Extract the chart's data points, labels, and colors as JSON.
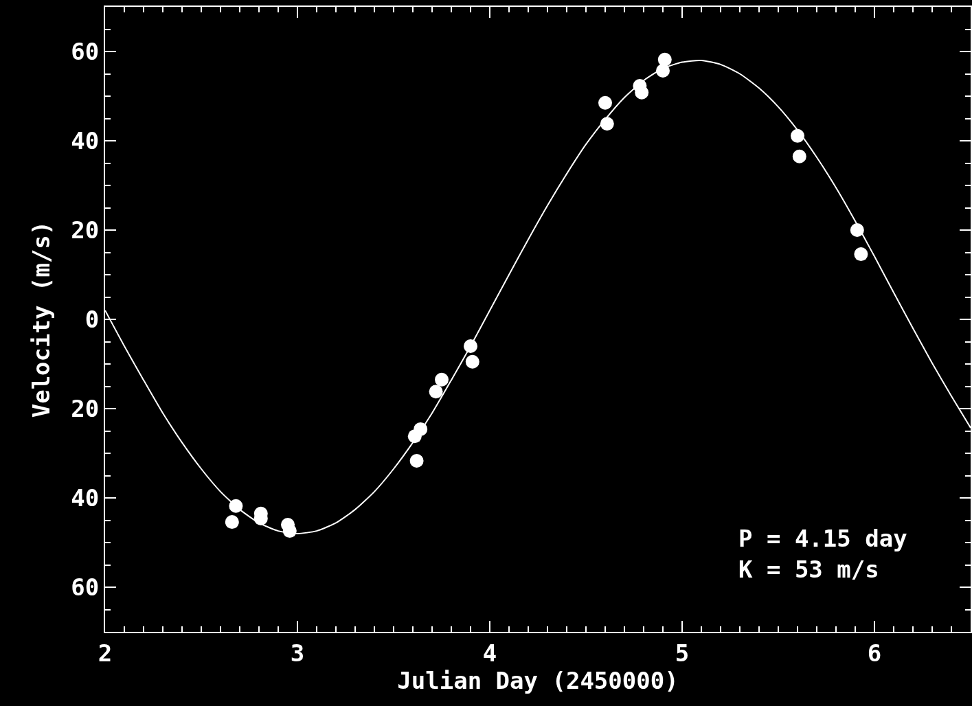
{
  "chart_data": {
    "type": "scatter",
    "xlabel": "Julian Day (2450000)",
    "ylabel": "Velocity (m/s)",
    "xlim": [
      2,
      6.5
    ],
    "xticks": [
      2,
      3,
      4,
      5,
      6
    ],
    "ylim": [
      -70,
      70
    ],
    "yticks": [
      {
        "value": -60,
        "label": "60"
      },
      {
        "value": -40,
        "label": "40"
      },
      {
        "value": -20,
        "label": "20"
      },
      0,
      20,
      40,
      60
    ],
    "grid": false,
    "marker": "circle",
    "annotations": [
      "P = 4.15 day",
      "K = 53 m/s"
    ],
    "series": [
      {
        "color": "#ffffff",
        "x": [
          2.66,
          2.68,
          2.81,
          2.81,
          2.95,
          2.96,
          3.61,
          3.64,
          3.62,
          3.72,
          3.75,
          3.9,
          3.91,
          4.6,
          4.61,
          4.78,
          4.79,
          4.9,
          4.91,
          5.6,
          5.61,
          5.91,
          5.93
        ],
        "values": [
          -45.4,
          -41.8,
          -44.6,
          -43.5,
          -46,
          -47.4,
          -26.2,
          -24.6,
          -31.7,
          -16.2,
          -13.5,
          -6,
          -9.5,
          48.5,
          43.8,
          52.3,
          50.8,
          55.7,
          58.2,
          41.1,
          36.5,
          20,
          14.6
        ]
      },
      {
        "type": "line",
        "color": "#ffffff",
        "marker": "none",
        "line_style": "solid",
        "x": [
          2,
          2.1,
          2.2,
          2.3,
          2.4,
          2.5,
          2.6,
          2.7,
          2.8,
          2.9,
          3,
          3.1,
          3.2,
          3.3,
          3.4,
          3.5,
          3.6,
          3.7,
          3.8,
          3.9,
          4,
          4.1,
          4.2,
          4.3,
          4.4,
          4.5,
          4.6,
          4.7,
          4.8,
          4.9,
          5,
          5.1,
          5.2,
          5.3,
          5.4,
          5.5,
          5.6,
          5.7,
          5.8,
          5.9,
          6,
          6.1,
          6.2,
          6.3,
          6.4,
          6.5
        ],
        "values": [
          2,
          -6,
          -13.6,
          -21,
          -27.6,
          -33.5,
          -38.6,
          -42.6,
          -45.6,
          -47.4,
          -48,
          -47.4,
          -45.6,
          -42.6,
          -38.6,
          -33.5,
          -27.6,
          -21,
          -13.6,
          -6,
          2,
          10,
          17.9,
          25.5,
          32.6,
          39.2,
          44.8,
          49.7,
          53.5,
          56.2,
          57.6,
          58,
          57.1,
          55,
          51.8,
          47.6,
          42.4,
          36.3,
          29.5,
          22,
          14.1,
          6,
          -2,
          -9.8,
          -17.2,
          -24.3
        ]
      }
    ]
  }
}
